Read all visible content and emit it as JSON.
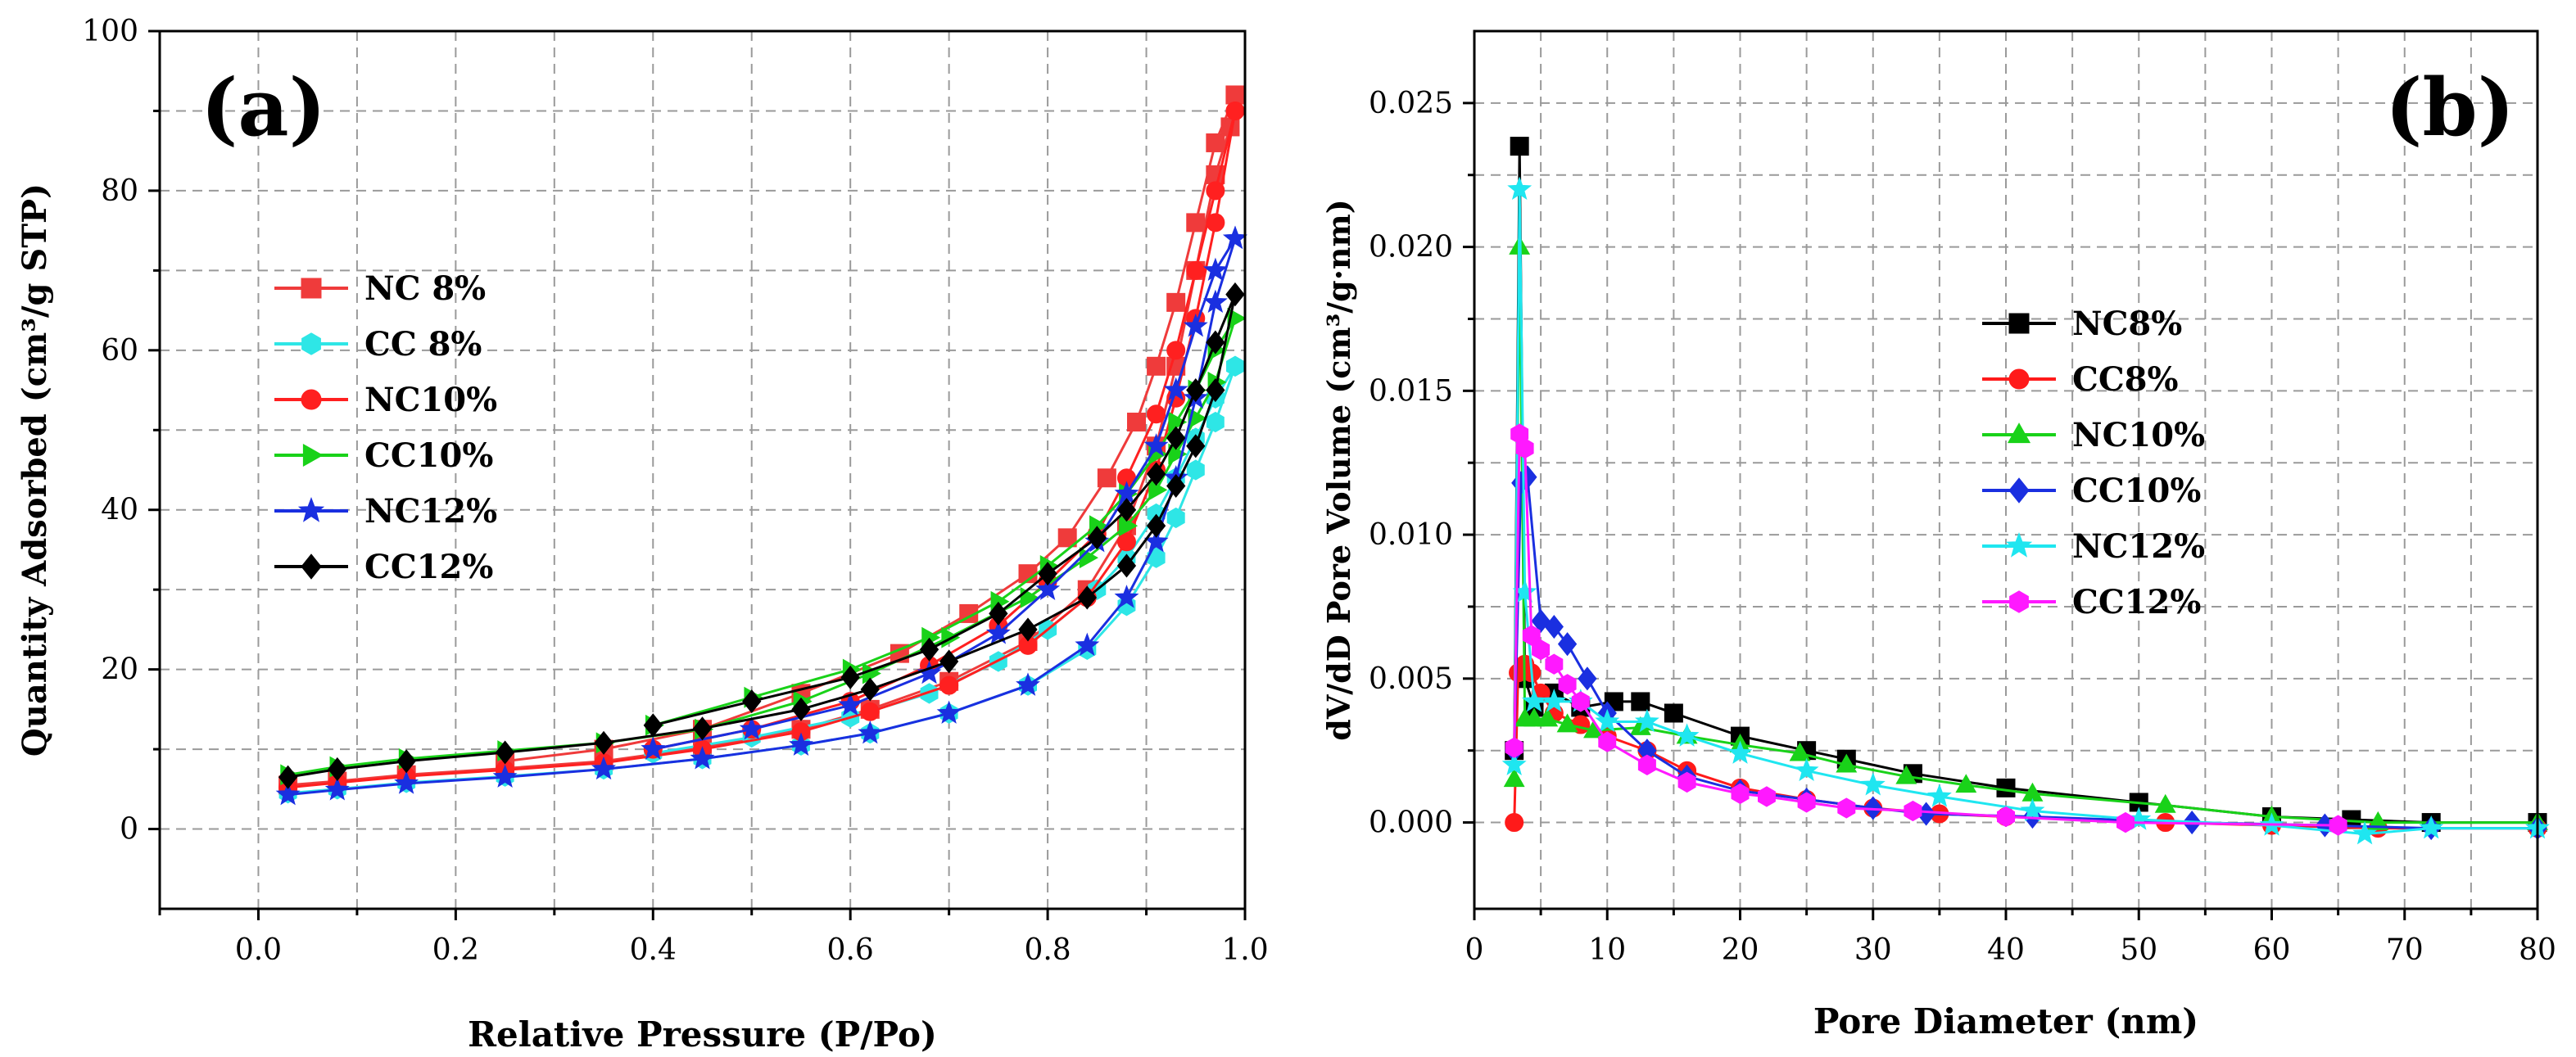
{
  "chart_data": [
    {
      "type": "line",
      "panel_label": "(a)",
      "xlabel": "Relative Pressure (P/Po)",
      "ylabel": "Quantity Adsorbed (cm³/g STP)",
      "xlim": [
        -0.1,
        1.0
      ],
      "ylim": [
        -10,
        100
      ],
      "xticks": [
        "0.0",
        "0.2",
        "0.4",
        "0.6",
        "0.8",
        "1.0"
      ],
      "xtick_values": [
        0.0,
        0.2,
        0.4,
        0.6,
        0.8,
        1.0
      ],
      "yticks": [
        "0",
        "20",
        "40",
        "60",
        "80",
        "100"
      ],
      "ytick_values": [
        0,
        20,
        40,
        60,
        80,
        100
      ],
      "grid": true,
      "legend_position": "left-middle",
      "series": [
        {
          "name": "NC 8%",
          "color": "#ef3b3b",
          "marker": "square",
          "x": [
            0.03,
            0.08,
            0.15,
            0.25,
            0.35,
            0.45,
            0.55,
            0.62,
            0.7,
            0.78,
            0.84,
            0.88,
            0.91,
            0.93,
            0.95,
            0.97,
            0.985,
            0.99
          ],
          "y": [
            5.5,
            6,
            6.8,
            7.6,
            8.5,
            10.2,
            12.5,
            15,
            18.5,
            23.5,
            30,
            38,
            48,
            58,
            70,
            82,
            88,
            92
          ],
          "x2": [
            0.99,
            0.97,
            0.95,
            0.93,
            0.91,
            0.89,
            0.86,
            0.82,
            0.78,
            0.72,
            0.65,
            0.55,
            0.45,
            0.35,
            0.25
          ],
          "y2": [
            92,
            86,
            76,
            66,
            58,
            51,
            44,
            36.5,
            32,
            27,
            22,
            17,
            12.5,
            10,
            8.5
          ]
        },
        {
          "name": "CC 8%",
          "color": "#2ee6e6",
          "marker": "hexagon",
          "x": [
            0.03,
            0.08,
            0.15,
            0.25,
            0.35,
            0.45,
            0.55,
            0.62,
            0.7,
            0.78,
            0.84,
            0.88,
            0.91,
            0.93,
            0.95,
            0.97,
            0.99
          ],
          "y": [
            4.5,
            5,
            5.8,
            6.6,
            7.5,
            8.8,
            10.5,
            12,
            14.5,
            18,
            22.5,
            28,
            34,
            39,
            45,
            51,
            58
          ],
          "x2": [
            0.99,
            0.97,
            0.95,
            0.93,
            0.91,
            0.88,
            0.85,
            0.8,
            0.75,
            0.68,
            0.6,
            0.5,
            0.4
          ],
          "y2": [
            58,
            54,
            49,
            44,
            39.5,
            34,
            30,
            25,
            21,
            17,
            14,
            11.5,
            9.5
          ]
        },
        {
          "name": "NC10%",
          "color": "#ff2020",
          "marker": "circle",
          "x": [
            0.03,
            0.08,
            0.15,
            0.25,
            0.35,
            0.45,
            0.55,
            0.62,
            0.7,
            0.78,
            0.84,
            0.88,
            0.91,
            0.93,
            0.95,
            0.97,
            0.99
          ],
          "y": [
            5.2,
            5.8,
            6.6,
            7.4,
            8.3,
            10,
            12.2,
            14.7,
            18,
            23,
            29,
            36,
            45,
            54,
            64,
            76,
            90
          ],
          "x2": [
            0.99,
            0.97,
            0.95,
            0.93,
            0.91,
            0.88,
            0.85,
            0.8,
            0.75,
            0.68,
            0.6,
            0.5,
            0.4
          ],
          "y2": [
            90,
            80,
            70,
            60,
            52,
            44,
            37,
            31,
            25.5,
            20.5,
            16,
            12.5,
            10
          ]
        },
        {
          "name": "CC10%",
          "color": "#19d219",
          "marker": "triangle-right",
          "x": [
            0.03,
            0.08,
            0.15,
            0.25,
            0.35,
            0.45,
            0.55,
            0.62,
            0.7,
            0.78,
            0.84,
            0.88,
            0.91,
            0.93,
            0.95,
            0.97,
            0.99
          ],
          "y": [
            6.8,
            7.8,
            8.8,
            9.8,
            10.8,
            12.5,
            16,
            19.5,
            24,
            29,
            34,
            38,
            42.5,
            47,
            51.5,
            56,
            64
          ],
          "x2": [
            0.99,
            0.97,
            0.95,
            0.93,
            0.91,
            0.88,
            0.85,
            0.8,
            0.75,
            0.68,
            0.6,
            0.5,
            0.4
          ],
          "y2": [
            64,
            60,
            55,
            51,
            47,
            42,
            38,
            33,
            28.5,
            24,
            20,
            16.5,
            13
          ]
        },
        {
          "name": "NC12%",
          "color": "#1a2fe0",
          "marker": "star",
          "x": [
            0.03,
            0.08,
            0.15,
            0.25,
            0.35,
            0.45,
            0.55,
            0.62,
            0.7,
            0.78,
            0.84,
            0.88,
            0.91,
            0.93,
            0.95,
            0.97,
            0.99
          ],
          "y": [
            4.3,
            4.9,
            5.7,
            6.5,
            7.5,
            8.8,
            10.5,
            12,
            14.5,
            18,
            23,
            29,
            36,
            44,
            54,
            66,
            74
          ],
          "x2": [
            0.99,
            0.97,
            0.95,
            0.93,
            0.91,
            0.88,
            0.85,
            0.8,
            0.75,
            0.68,
            0.6,
            0.5,
            0.4
          ],
          "y2": [
            74,
            70,
            63,
            55,
            48,
            42,
            36,
            30,
            24.5,
            19.5,
            15.5,
            12.5,
            10
          ]
        },
        {
          "name": "CC12%",
          "color": "#000000",
          "marker": "diamond",
          "x": [
            0.03,
            0.08,
            0.15,
            0.25,
            0.35,
            0.45,
            0.55,
            0.62,
            0.7,
            0.78,
            0.84,
            0.88,
            0.91,
            0.93,
            0.95,
            0.97,
            0.99
          ],
          "y": [
            6.5,
            7.5,
            8.5,
            9.6,
            10.8,
            12.6,
            15,
            17.5,
            21,
            25,
            29,
            33,
            38,
            43,
            48,
            55,
            67
          ],
          "x2": [
            0.99,
            0.97,
            0.95,
            0.93,
            0.91,
            0.88,
            0.85,
            0.8,
            0.75,
            0.68,
            0.6,
            0.5,
            0.4
          ],
          "y2": [
            67,
            61,
            55,
            49,
            44.5,
            40,
            36.5,
            32,
            27,
            22.5,
            19,
            16,
            13
          ]
        }
      ]
    },
    {
      "type": "line",
      "panel_label": "(b)",
      "xlabel": "Pore Diameter (nm)",
      "ylabel": "dV/dD Pore Volume (cm³/g·nm)",
      "xlim": [
        0,
        80
      ],
      "ylim": [
        -0.003,
        0.0275
      ],
      "xticks": [
        "0",
        "10",
        "20",
        "30",
        "40",
        "50",
        "60",
        "70",
        "80"
      ],
      "xtick_values": [
        0,
        10,
        20,
        30,
        40,
        50,
        60,
        70,
        80
      ],
      "yticks": [
        "0.000",
        "0.005",
        "0.010",
        "0.015",
        "0.020",
        "0.025"
      ],
      "ytick_values": [
        0,
        0.005,
        0.01,
        0.015,
        0.02,
        0.025
      ],
      "grid": true,
      "legend_position": "center-right",
      "series": [
        {
          "name": "NC8%",
          "color": "#000000",
          "marker": "square",
          "x": [
            3.0,
            3.4,
            3.8,
            4.5,
            6,
            8,
            10.5,
            12.5,
            15,
            20,
            25,
            28,
            33,
            40,
            50,
            60,
            66,
            72,
            80
          ],
          "y": [
            0.0025,
            0.0235,
            0.005,
            0.004,
            0.0045,
            0.004,
            0.0042,
            0.0042,
            0.0038,
            0.003,
            0.0025,
            0.0022,
            0.0017,
            0.0012,
            0.0007,
            0.0002,
            0.0001,
            0.0,
            0.0
          ]
        },
        {
          "name": "CC8%",
          "color": "#ff1a1a",
          "marker": "circle",
          "x": [
            3.0,
            3.3,
            3.8,
            4.3,
            5,
            6,
            8,
            10,
            13,
            16,
            20,
            25,
            30,
            35,
            40,
            52,
            60,
            68,
            80
          ],
          "y": [
            0.0,
            0.0052,
            0.0055,
            0.0052,
            0.0045,
            0.0038,
            0.0034,
            0.003,
            0.0025,
            0.0018,
            0.0012,
            0.0008,
            0.0005,
            0.0003,
            0.0002,
            0.0,
            -0.0001,
            -0.0002,
            -0.0002
          ]
        },
        {
          "name": "NC10%",
          "color": "#19d219",
          "marker": "triangle",
          "x": [
            3.0,
            3.4,
            3.8,
            4.5,
            5.5,
            7,
            9,
            12.5,
            16,
            20,
            24.5,
            28,
            32.5,
            37,
            42,
            52,
            60,
            68,
            80
          ],
          "y": [
            0.0015,
            0.02,
            0.0036,
            0.0036,
            0.0036,
            0.0034,
            0.0032,
            0.0033,
            0.003,
            0.0027,
            0.0024,
            0.002,
            0.0016,
            0.0013,
            0.001,
            0.0006,
            0.0002,
            0.0,
            0.0
          ]
        },
        {
          "name": "CC10%",
          "color": "#1a2fe0",
          "marker": "diamond",
          "x": [
            3.0,
            3.5,
            4.0,
            5,
            6,
            7,
            8.5,
            10,
            13,
            16,
            20,
            25,
            30,
            34,
            42,
            54,
            64,
            72,
            80
          ],
          "y": [
            0.0025,
            0.0118,
            0.012,
            0.007,
            0.0068,
            0.0062,
            0.005,
            0.0038,
            0.0025,
            0.0016,
            0.0011,
            0.0008,
            0.0005,
            0.0003,
            0.0002,
            0.0,
            -0.0001,
            -0.0002,
            -0.0002
          ]
        },
        {
          "name": "NC12%",
          "color": "#1fe6f0",
          "marker": "star",
          "x": [
            3.0,
            3.4,
            3.8,
            4.5,
            6,
            8,
            10,
            13,
            16,
            20,
            25,
            30,
            35,
            42,
            50,
            60,
            67,
            72,
            80
          ],
          "y": [
            0.002,
            0.022,
            0.008,
            0.0042,
            0.0042,
            0.0042,
            0.0035,
            0.0035,
            0.003,
            0.0024,
            0.0018,
            0.0013,
            0.0009,
            0.0004,
            0.0001,
            -0.0001,
            -0.0004,
            -0.0002,
            -0.0002
          ]
        },
        {
          "name": "CC12%",
          "color": "#ff19ff",
          "marker": "hexagon",
          "x": [
            3.0,
            3.4,
            3.8,
            4.3,
            5,
            6,
            7,
            8,
            10,
            13,
            16,
            20,
            22,
            25,
            28,
            33,
            40,
            49,
            65
          ],
          "y": [
            0.0026,
            0.0135,
            0.013,
            0.0065,
            0.006,
            0.0055,
            0.0048,
            0.0042,
            0.0028,
            0.002,
            0.0014,
            0.001,
            0.0009,
            0.0007,
            0.0005,
            0.0004,
            0.0002,
            0.0,
            -0.0001
          ]
        }
      ]
    }
  ]
}
